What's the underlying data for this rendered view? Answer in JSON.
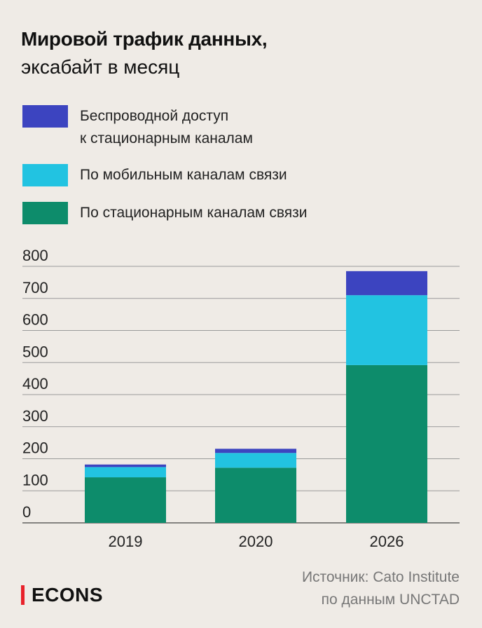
{
  "title": "Мировой трафик данных,",
  "subtitle": "эксабайт в месяц",
  "legend": [
    {
      "line1": "Беспроводной доступ",
      "line2": "к стационарным каналам",
      "color": "#3c44c0"
    },
    {
      "line1": "По мобильным каналам связи",
      "line2": "",
      "color": "#22c3e1"
    },
    {
      "line1": "По стационарным каналам связи",
      "line2": "",
      "color": "#0d8c6b"
    }
  ],
  "chart_data": {
    "type": "bar",
    "stacked": true,
    "categories": [
      "2019",
      "2020",
      "2026"
    ],
    "series": [
      {
        "name": "По стационарным каналам связи",
        "color": "#0d8c6b",
        "values": [
          142,
          172,
          492
        ]
      },
      {
        "name": "По мобильным каналам связи",
        "color": "#22c3e1",
        "values": [
          32,
          46,
          218
        ]
      },
      {
        "name": "Беспроводной доступ к стационарным каналам",
        "color": "#3c44c0",
        "values": [
          8,
          13,
          75
        ]
      }
    ],
    "yticks": [
      "0",
      "100",
      "200",
      "300",
      "400",
      "500",
      "600",
      "700",
      "800"
    ],
    "ylim": [
      0,
      800
    ],
    "grid": true
  },
  "source": {
    "line1": "Источник: Cato Institute",
    "line2": "по данным UNCTAD"
  },
  "logo": "ECONS"
}
